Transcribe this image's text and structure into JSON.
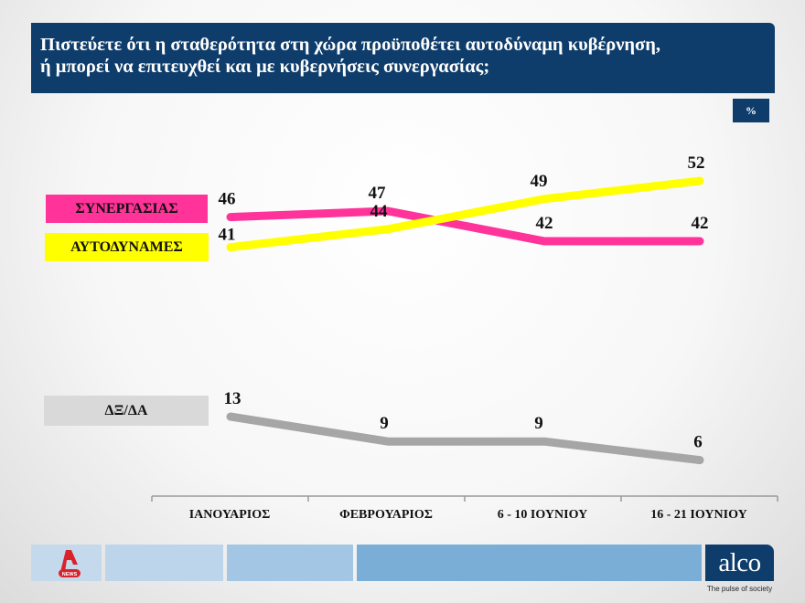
{
  "header": {
    "title_line1": "Πιστεύετε ότι η σταθερότητα στη χώρα προϋποθέτει αυτοδύναμη κυβέρνηση,",
    "title_line2": "ή μπορεί να επιτευχθεί και με  κυβερνήσεις συνεργασίας;",
    "unit_badge": "%"
  },
  "legend": {
    "synergasias": "ΣΥΝΕΡΓΑΣΙΑΣ",
    "aftodynames": "ΑΥΤΟΔΥΝΑΜΕΣ",
    "dxda": "ΔΞ/ΔΑ"
  },
  "colors": {
    "header_bg": "#0f3d6b",
    "synergasias": "#ff3399",
    "aftodynames": "#ffff00",
    "dxda": "#a6a6a6",
    "dxda_label_bg": "#d9d9d9",
    "footer_1": "#c5d9ec",
    "footer_2": "#bdd5ea",
    "footer_3": "#a3c6e4",
    "footer_4": "#7aaed6"
  },
  "footer": {
    "news_logo": "NEWS",
    "brand": "alco",
    "tagline": "The pulse of society"
  },
  "chart_data": {
    "type": "line",
    "title": "Πιστεύετε ότι η σταθερότητα στη χώρα προϋποθέτει αυτοδύναμη κυβέρνηση, ή μπορεί να επιτευχθεί και με κυβερνήσεις συνεργασίας;",
    "xlabel": "",
    "ylabel": "%",
    "categories": [
      "ΙΑΝΟΥΑΡΙΟΣ",
      "ΦΕΒΡΟΥΑΡΙΟΣ",
      "6 - 10 ΙΟΥΝΙΟΥ",
      "16 - 21 ΙΟΥΝΙΟΥ"
    ],
    "series": [
      {
        "name": "ΣΥΝΕΡΓΑΣΙΑΣ",
        "values": [
          46,
          47,
          42,
          42
        ],
        "color": "#ff3399"
      },
      {
        "name": "ΑΥΤΟΔΥΝΑΜΕΣ",
        "values": [
          41,
          44,
          49,
          52
        ],
        "color": "#ffff00"
      },
      {
        "name": "ΔΞ/ΔΑ",
        "values": [
          13,
          9,
          9,
          6
        ],
        "color": "#a6a6a6"
      }
    ],
    "data_labels": true,
    "grid": false,
    "legend_position": "left"
  }
}
